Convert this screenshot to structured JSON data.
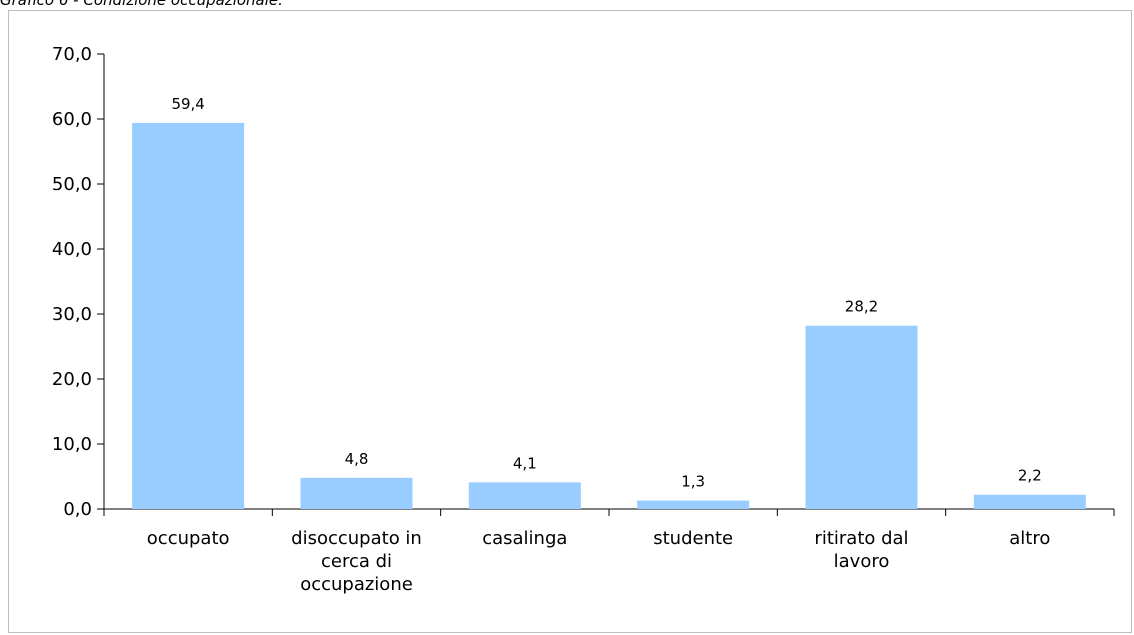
{
  "caption": "Grafico 6 - Condizione occupazionale.",
  "chart_data": {
    "type": "bar",
    "categories": [
      [
        "occupato"
      ],
      [
        "disoccupato in",
        "cerca di",
        "occupazione"
      ],
      [
        "casalinga"
      ],
      [
        "studente"
      ],
      [
        "ritirato dal",
        "lavoro"
      ],
      [
        "altro"
      ]
    ],
    "values": [
      59.4,
      4.8,
      4.1,
      1.3,
      28.2,
      2.2
    ],
    "value_labels": [
      "59,4",
      "4,8",
      "4,1",
      "1,3",
      "28,2",
      "2,2"
    ],
    "ylim": [
      0,
      70
    ],
    "yticks": [
      0,
      10,
      20,
      30,
      40,
      50,
      60,
      70
    ],
    "ytick_labels": [
      "0,0",
      "10,0",
      "20,0",
      "30,0",
      "40,0",
      "50,0",
      "60,0",
      "70,0"
    ],
    "title": "",
    "xlabel": "",
    "ylabel": "",
    "grid": false,
    "bar_color": "#99ccff"
  }
}
